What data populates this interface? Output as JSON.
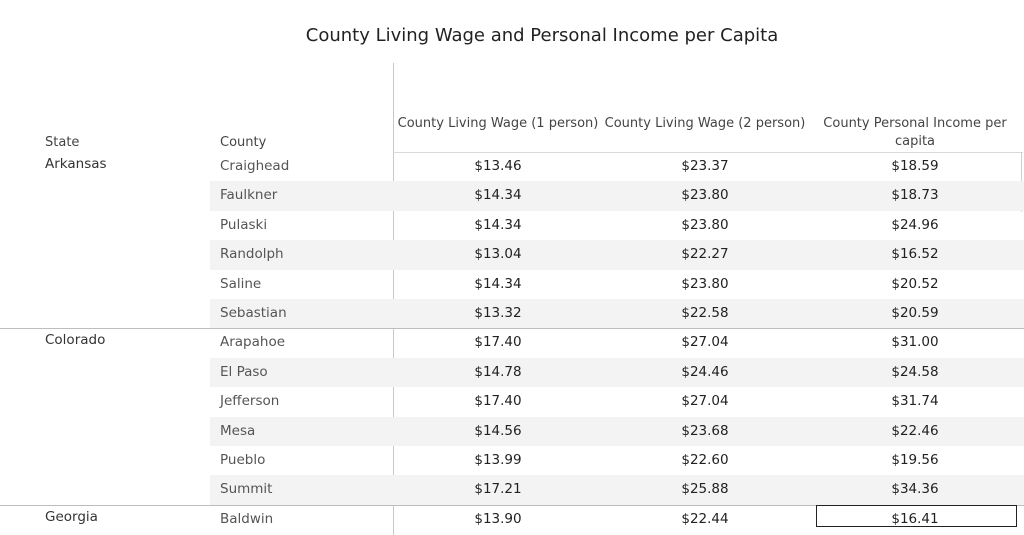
{
  "chart_data": {
    "type": "table",
    "title": "County Living Wage and Personal Income per Capita",
    "columns": {
      "state": "State",
      "county": "County",
      "measure1": "County Living Wage (1 person)",
      "measure2": "County Living Wage (2 person)",
      "measure3": "County Personal Income per capita"
    },
    "rows": [
      {
        "state": "Arkansas",
        "county": "Craighead",
        "v1": "$13.46",
        "v2": "$23.37",
        "v3": "$18.59"
      },
      {
        "state": "",
        "county": "Faulkner",
        "v1": "$14.34",
        "v2": "$23.80",
        "v3": "$18.73"
      },
      {
        "state": "",
        "county": "Pulaski",
        "v1": "$14.34",
        "v2": "$23.80",
        "v3": "$24.96"
      },
      {
        "state": "",
        "county": "Randolph",
        "v1": "$13.04",
        "v2": "$22.27",
        "v3": "$16.52"
      },
      {
        "state": "",
        "county": "Saline",
        "v1": "$14.34",
        "v2": "$23.80",
        "v3": "$20.52"
      },
      {
        "state": "",
        "county": "Sebastian",
        "v1": "$13.32",
        "v2": "$22.58",
        "v3": "$20.59"
      },
      {
        "state": "Colorado",
        "county": "Arapahoe",
        "v1": "$17.40",
        "v2": "$27.04",
        "v3": "$31.00"
      },
      {
        "state": "",
        "county": "El Paso",
        "v1": "$14.78",
        "v2": "$24.46",
        "v3": "$24.58"
      },
      {
        "state": "",
        "county": "Jefferson",
        "v1": "$17.40",
        "v2": "$27.04",
        "v3": "$31.74"
      },
      {
        "state": "",
        "county": "Mesa",
        "v1": "$14.56",
        "v2": "$23.68",
        "v3": "$22.46"
      },
      {
        "state": "",
        "county": "Pueblo",
        "v1": "$13.99",
        "v2": "$22.60",
        "v3": "$19.56"
      },
      {
        "state": "",
        "county": "Summit",
        "v1": "$17.21",
        "v2": "$25.88",
        "v3": "$34.36"
      },
      {
        "state": "Georgia",
        "county": "Baldwin",
        "v1": "$13.90",
        "v2": "$22.44",
        "v3": "$16.41"
      }
    ]
  }
}
